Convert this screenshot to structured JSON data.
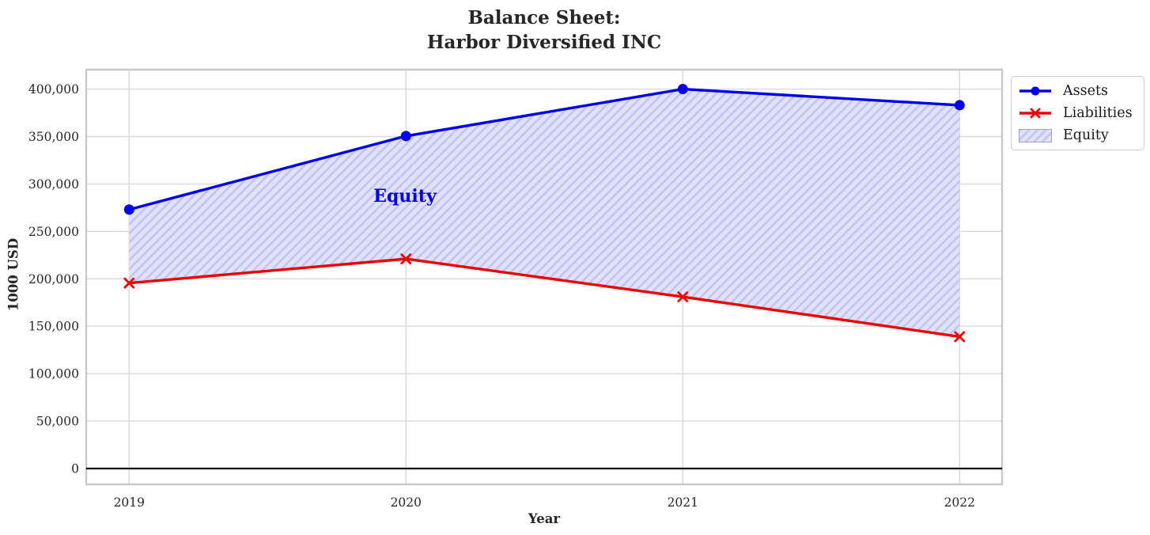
{
  "title": {
    "line1": "Balance Sheet:",
    "line2": "Harbor Diversified INC"
  },
  "axes": {
    "xlabel": "Year",
    "ylabel": "1000 USD"
  },
  "annotation": {
    "text": "Equity"
  },
  "legend": {
    "items": [
      {
        "label": "Assets",
        "type": "line",
        "color": "#0000ee",
        "marker": "circle"
      },
      {
        "label": "Liabilities",
        "type": "line",
        "color": "#ee0000",
        "marker": "x"
      },
      {
        "label": "Equity",
        "type": "patch",
        "fill": "#e1e1fb",
        "hatch_color": "#c3c3f0",
        "edge_color": "#a0a0e8"
      }
    ]
  },
  "colors": {
    "grid": "#d9d9d9",
    "spine": "#c8c8c8",
    "zero_line": "#000000",
    "tick_text": "#262626",
    "fill_base": "#e1e1fb",
    "fill_hatch": "#c3c3f0",
    "annotation_blue": "#0000dd"
  },
  "chart_data": {
    "type": "line",
    "title": "Balance Sheet:\nHarbor Diversified INC",
    "xlabel": "Year",
    "ylabel": "1000 USD",
    "x": [
      2019,
      2020,
      2021,
      2022
    ],
    "x_tick_labels": [
      "2019",
      "2020",
      "2021",
      "2022"
    ],
    "yticks": [
      0,
      50000,
      100000,
      150000,
      200000,
      250000,
      300000,
      350000,
      400000
    ],
    "ytick_labels": [
      "0",
      "50,000",
      "100,000",
      "150,000",
      "200,000",
      "250,000",
      "300,000",
      "350,000",
      "400,000"
    ],
    "xlim": [
      2018.845,
      2022.153
    ],
    "ylim": [
      -17000,
      420500
    ],
    "grid": true,
    "legend_position": "outside upper right",
    "series": [
      {
        "name": "Assets",
        "values": [
          273000,
          350500,
          400000,
          383000
        ],
        "color": "#0000ee",
        "marker": "circle",
        "line_width": 3.4
      },
      {
        "name": "Liabilities",
        "values": [
          195500,
          221000,
          181000,
          139000
        ],
        "color": "#ee0000",
        "marker": "x",
        "line_width": 3.4
      }
    ],
    "fill_between": {
      "name": "Equity",
      "upper": "Assets",
      "lower": "Liabilities",
      "fill_color": "#e1e1fb",
      "hatch": "/",
      "hatch_color": "#c3c3f0"
    },
    "annotation": {
      "text": "Equity",
      "x": 2020,
      "y": 287000
    },
    "zero_line": 0
  }
}
